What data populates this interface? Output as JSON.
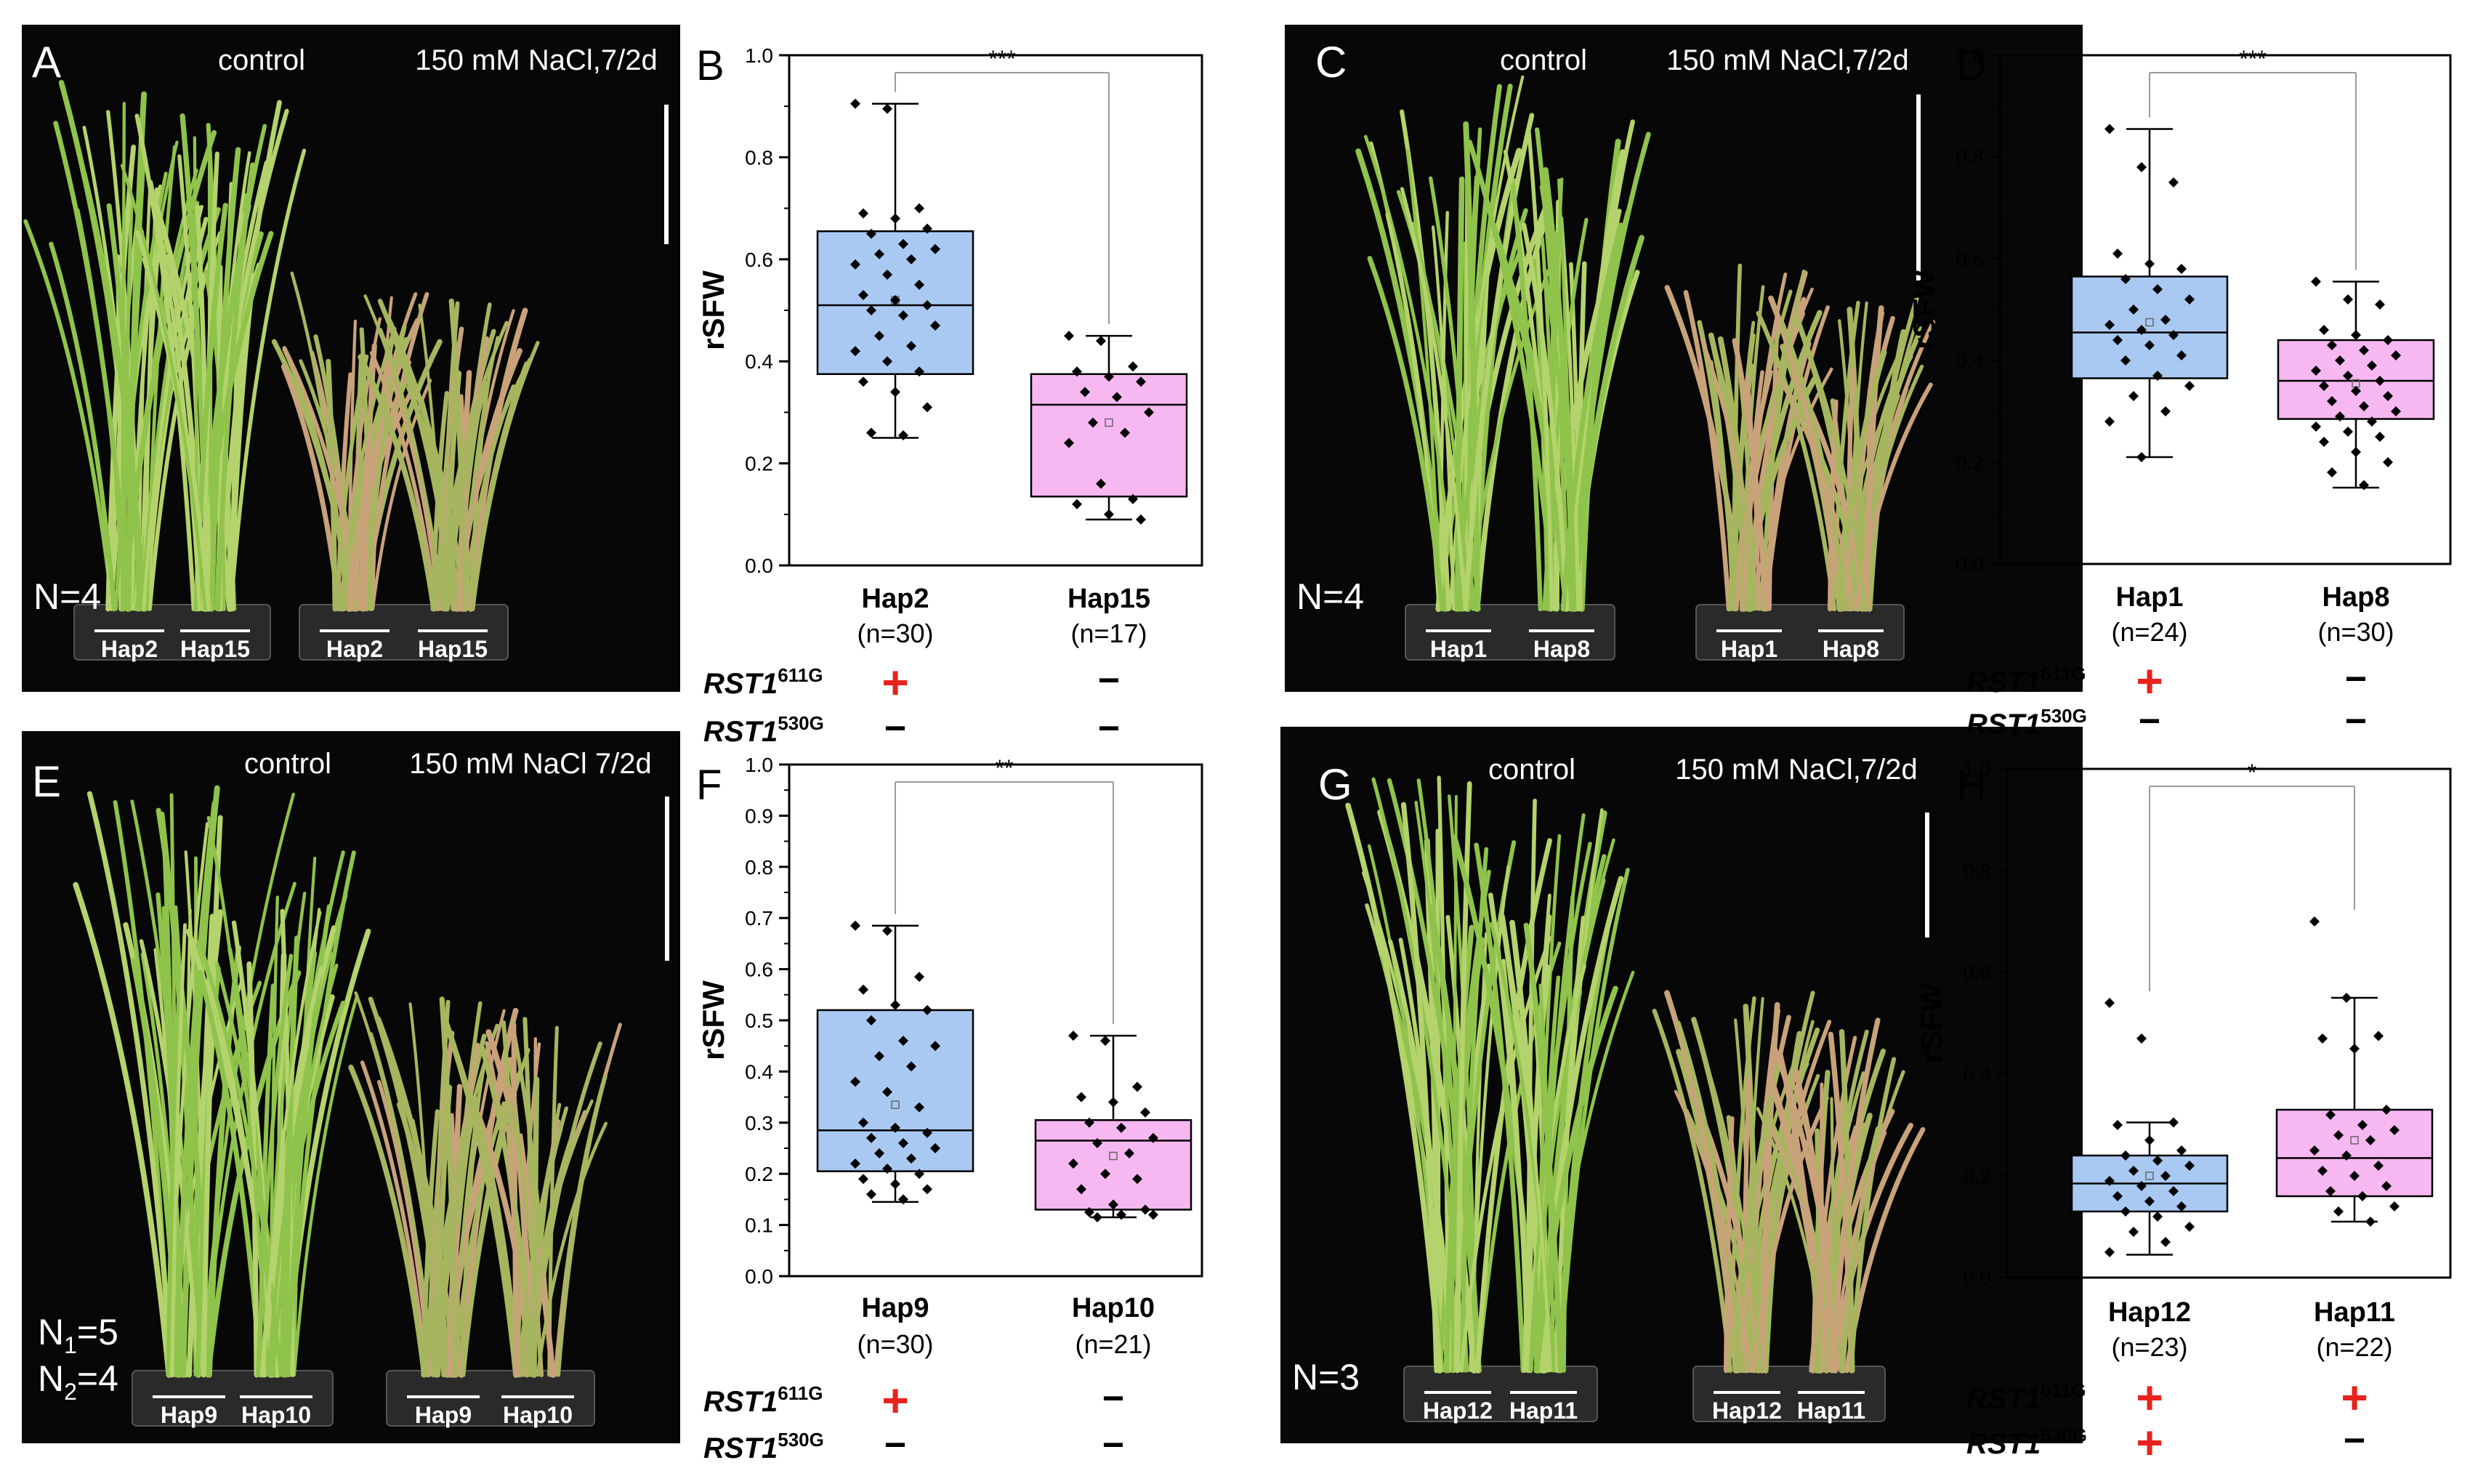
{
  "figure": {
    "photos": [
      {
        "letter": "A",
        "title_left": "control",
        "title_right": "150 mM NaCl,7/2d",
        "n_lines": [
          "N=4"
        ],
        "pot_labels": [
          "Hap2",
          "Hap15",
          "Hap2",
          "Hap15"
        ]
      },
      {
        "letter": "C",
        "title_left": "control",
        "title_right": "150 mM NaCl,7/2d",
        "n_lines": [
          "N=4"
        ],
        "pot_labels": [
          "Hap1",
          "Hap8",
          "Hap1",
          "Hap8"
        ]
      },
      {
        "letter": "E",
        "title_left": "control",
        "title_right": "150 mM NaCl 7/2d",
        "n_lines": [
          {
            "main": "N",
            "sub": "1",
            "rest": "=5"
          },
          {
            "main": "N",
            "sub": "2",
            "rest": "=4"
          }
        ],
        "pot_labels": [
          "Hap9",
          "Hap10",
          "Hap9",
          "Hap10"
        ]
      },
      {
        "letter": "G",
        "title_left": "control",
        "title_right": "150 mM NaCl,7/2d",
        "n_lines": [
          "N=3"
        ],
        "pot_labels": [
          "Hap12",
          "Hap11",
          "Hap12",
          "Hap11"
        ]
      }
    ],
    "genotype_labels": {
      "gene": "RST1",
      "sup611": "611G",
      "sup530": "530G"
    },
    "colors": {
      "box1": "#a9c9f2",
      "box2": "#f7b8f2",
      "plus": "#e8231d",
      "mark": "#000000",
      "bracket": "#9a9a9a"
    }
  },
  "chart_data": [
    {
      "panel": "B",
      "type": "box",
      "ylabel": "rSFW",
      "ylim": [
        0,
        1.0
      ],
      "yticks": [
        "0.0",
        "0.2",
        "0.4",
        "0.6",
        "0.8",
        "1.0"
      ],
      "minor_step": 0.1,
      "significance": "***",
      "groups": [
        {
          "name": "Hap2",
          "n": "(n=30)",
          "rst611": "+",
          "rst530": "-",
          "q1": 0.375,
          "median": 0.51,
          "mean": 0.52,
          "q3": 0.655,
          "whisker_low": 0.25,
          "whisker_high": 0.905,
          "points": [
            0.905,
            0.895,
            0.7,
            0.69,
            0.68,
            0.66,
            0.65,
            0.63,
            0.62,
            0.61,
            0.6,
            0.59,
            0.57,
            0.55,
            0.53,
            0.52,
            0.51,
            0.5,
            0.49,
            0.47,
            0.45,
            0.43,
            0.42,
            0.4,
            0.38,
            0.36,
            0.34,
            0.31,
            0.26,
            0.255
          ]
        },
        {
          "name": "Hap15",
          "n": "(n=17)",
          "rst611": "-",
          "rst530": "-",
          "q1": 0.135,
          "median": 0.315,
          "mean": 0.28,
          "q3": 0.375,
          "whisker_low": 0.09,
          "whisker_high": 0.45,
          "points": [
            0.45,
            0.44,
            0.39,
            0.38,
            0.37,
            0.36,
            0.34,
            0.33,
            0.3,
            0.28,
            0.26,
            0.24,
            0.16,
            0.13,
            0.12,
            0.1,
            0.09
          ]
        }
      ]
    },
    {
      "panel": "D",
      "type": "box",
      "ylabel": "rSFW",
      "ylim": [
        0,
        1.0
      ],
      "yticks": [
        "0.0",
        "0.2",
        "0.4",
        "0.6",
        "0.8",
        "1.0"
      ],
      "minor_step": 0.1,
      "significance": "***",
      "groups": [
        {
          "name": "Hap1",
          "n": "(n=24)",
          "rst611": "+",
          "rst530": "-",
          "q1": 0.365,
          "median": 0.455,
          "mean": 0.475,
          "q3": 0.565,
          "whisker_low": 0.21,
          "whisker_high": 0.855,
          "points": [
            0.855,
            0.78,
            0.75,
            0.61,
            0.59,
            0.58,
            0.56,
            0.54,
            0.52,
            0.5,
            0.48,
            0.47,
            0.46,
            0.45,
            0.44,
            0.43,
            0.41,
            0.4,
            0.37,
            0.35,
            0.33,
            0.3,
            0.28,
            0.21
          ]
        },
        {
          "name": "Hap8",
          "n": "(n=30)",
          "rst611": "-",
          "rst530": "-",
          "q1": 0.285,
          "median": 0.36,
          "mean": 0.355,
          "q3": 0.44,
          "whisker_low": 0.15,
          "whisker_high": 0.555,
          "points": [
            0.555,
            0.52,
            0.51,
            0.46,
            0.45,
            0.44,
            0.43,
            0.42,
            0.41,
            0.4,
            0.39,
            0.38,
            0.37,
            0.36,
            0.35,
            0.34,
            0.33,
            0.32,
            0.31,
            0.3,
            0.29,
            0.28,
            0.27,
            0.26,
            0.25,
            0.24,
            0.22,
            0.2,
            0.18,
            0.155
          ]
        }
      ]
    },
    {
      "panel": "F",
      "type": "box",
      "ylabel": "rSFW",
      "ylim": [
        0,
        1.0
      ],
      "yticks": [
        "0.0",
        "0.1",
        "0.2",
        "0.3",
        "0.4",
        "0.5",
        "0.6",
        "0.7",
        "0.8",
        "0.9",
        "1.0"
      ],
      "minor_step": 0.05,
      "significance": "**",
      "groups": [
        {
          "name": "Hap9",
          "n": "(n=30)",
          "rst611": "+",
          "rst530": "-",
          "q1": 0.205,
          "median": 0.285,
          "mean": 0.335,
          "q3": 0.52,
          "whisker_low": 0.145,
          "whisker_high": 0.685,
          "points": [
            0.685,
            0.675,
            0.585,
            0.56,
            0.53,
            0.52,
            0.5,
            0.46,
            0.45,
            0.43,
            0.41,
            0.38,
            0.36,
            0.33,
            0.3,
            0.29,
            0.28,
            0.27,
            0.26,
            0.25,
            0.24,
            0.23,
            0.22,
            0.21,
            0.2,
            0.19,
            0.18,
            0.17,
            0.16,
            0.15
          ]
        },
        {
          "name": "Hap10",
          "n": "(n=21)",
          "rst611": "-",
          "rst530": "-",
          "q1": 0.13,
          "median": 0.265,
          "mean": 0.235,
          "q3": 0.305,
          "whisker_low": 0.115,
          "whisker_high": 0.47,
          "points": [
            0.47,
            0.46,
            0.37,
            0.35,
            0.34,
            0.32,
            0.3,
            0.29,
            0.27,
            0.26,
            0.24,
            0.22,
            0.2,
            0.19,
            0.17,
            0.14,
            0.13,
            0.125,
            0.12,
            0.12,
            0.115
          ]
        }
      ]
    },
    {
      "panel": "H",
      "type": "box",
      "ylabel": "rSFW",
      "ylim": [
        0,
        1.0
      ],
      "yticks": [
        "0.0",
        "0.2",
        "0.4",
        "0.6",
        "0.8",
        "1.0"
      ],
      "minor_step": 0.1,
      "significance": "*",
      "groups": [
        {
          "name": "Hap12",
          "n": "(n=23)",
          "rst611": "+",
          "rst530": "+",
          "q1": 0.13,
          "median": 0.185,
          "mean": 0.2,
          "q3": 0.24,
          "whisker_low": 0.045,
          "whisker_high": 0.305,
          "points": [
            0.54,
            0.47,
            0.305,
            0.3,
            0.27,
            0.25,
            0.24,
            0.23,
            0.22,
            0.21,
            0.2,
            0.19,
            0.18,
            0.17,
            0.16,
            0.15,
            0.14,
            0.13,
            0.12,
            0.1,
            0.09,
            0.07,
            0.05
          ]
        },
        {
          "name": "Hap11",
          "n": "(n=22)",
          "rst611": "+",
          "rst530": "-",
          "q1": 0.16,
          "median": 0.235,
          "mean": 0.27,
          "q3": 0.33,
          "whisker_low": 0.11,
          "whisker_high": 0.55,
          "points": [
            0.7,
            0.55,
            0.475,
            0.47,
            0.45,
            0.33,
            0.32,
            0.3,
            0.29,
            0.28,
            0.27,
            0.25,
            0.24,
            0.22,
            0.21,
            0.2,
            0.18,
            0.17,
            0.16,
            0.14,
            0.13,
            0.11
          ]
        }
      ]
    }
  ]
}
